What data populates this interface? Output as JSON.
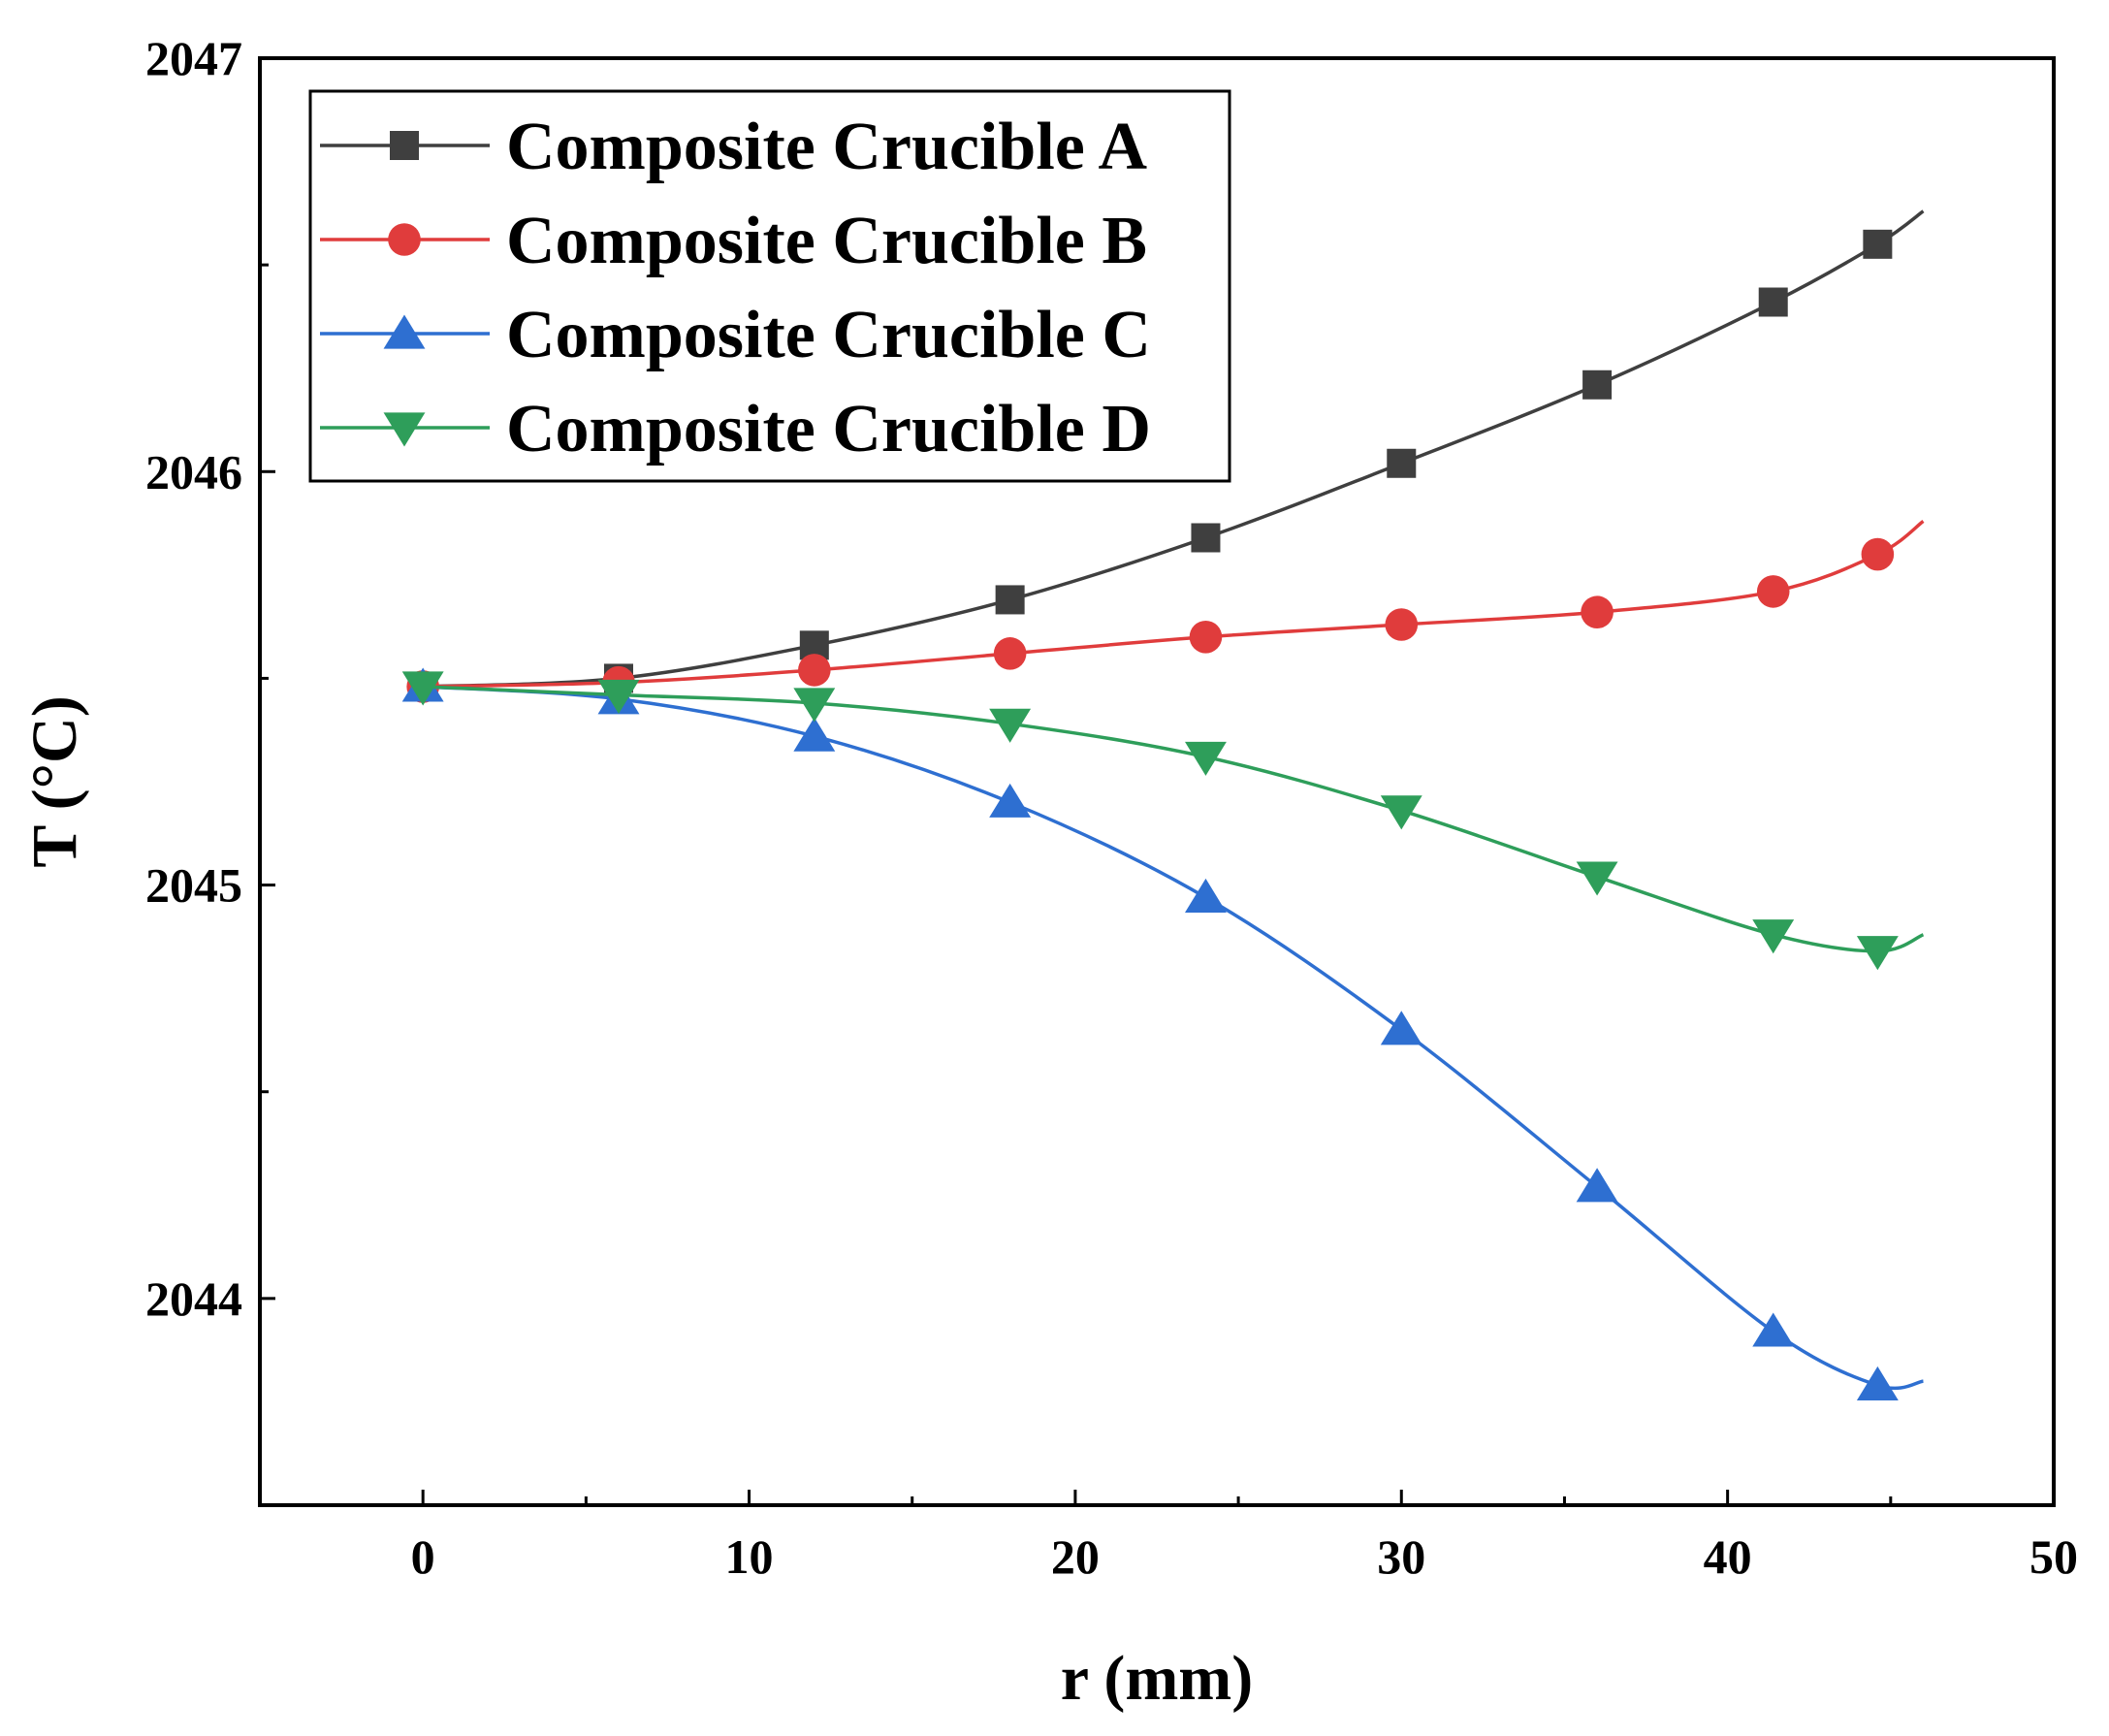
{
  "chart_data": {
    "type": "line",
    "title": "",
    "xlabel": "r (mm)",
    "ylabel": "T (°C)",
    "xlim": [
      -5,
      50
    ],
    "ylim": [
      2043.5,
      2047
    ],
    "xticks": [
      0,
      10,
      20,
      30,
      40,
      50
    ],
    "yticks": [
      2044,
      2045,
      2046,
      2047
    ],
    "grid": false,
    "legend_position": "top-left",
    "series": [
      {
        "name": "Composite Crucible A",
        "color": "#3f3f3f",
        "marker": "square",
        "x": [
          0,
          6,
          12,
          18,
          24,
          30,
          36,
          41.4,
          44.6
        ],
        "y": [
          2045.48,
          2045.5,
          2045.58,
          2045.69,
          2045.84,
          2046.02,
          2046.21,
          2046.41,
          2046.55
        ],
        "curve_end": {
          "x": 46,
          "y": 2046.63
        }
      },
      {
        "name": "Composite Crucible B",
        "color": "#e03c3c",
        "marker": "circle",
        "x": [
          0,
          6,
          12,
          18,
          24,
          30,
          36,
          41.4,
          44.6
        ],
        "y": [
          2045.48,
          2045.49,
          2045.52,
          2045.56,
          2045.6,
          2045.63,
          2045.66,
          2045.71,
          2045.8
        ],
        "curve_end": {
          "x": 46,
          "y": 2045.88
        }
      },
      {
        "name": "Composite Crucible C",
        "color": "#2e6fd1",
        "marker": "triangle-up",
        "x": [
          0,
          6,
          12,
          18,
          24,
          30,
          36,
          41.4,
          44.6
        ],
        "y": [
          2045.48,
          2045.45,
          2045.36,
          2045.2,
          2044.97,
          2044.65,
          2044.27,
          2043.92,
          2043.79
        ],
        "curve_end": {
          "x": 46,
          "y": 2043.8
        }
      },
      {
        "name": "Composite Crucible D",
        "color": "#2e9e5a",
        "marker": "triangle-down",
        "x": [
          0,
          6,
          12,
          18,
          24,
          30,
          36,
          41.4,
          44.6
        ],
        "y": [
          2045.48,
          2045.46,
          2045.44,
          2045.39,
          2045.31,
          2045.18,
          2045.02,
          2044.88,
          2044.84
        ],
        "curve_end": {
          "x": 46,
          "y": 2044.88
        }
      }
    ]
  }
}
